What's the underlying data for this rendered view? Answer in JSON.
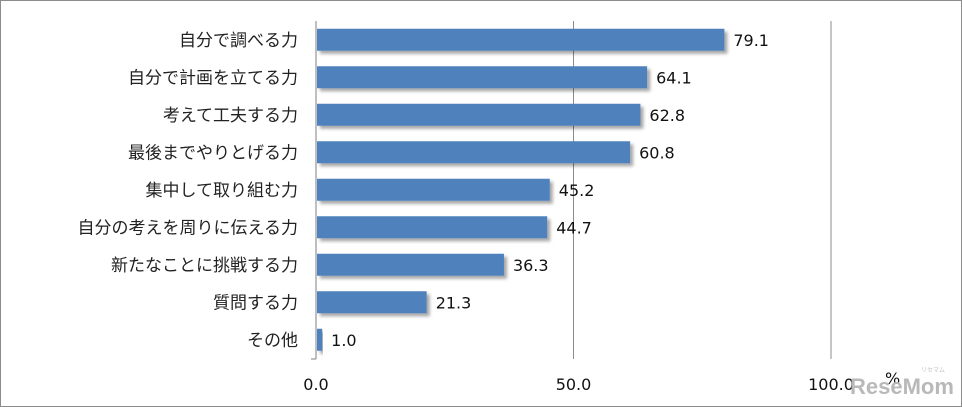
{
  "chart_data": {
    "type": "bar",
    "orientation": "horizontal",
    "categories": [
      "自分で調べる力",
      "自分で計画を立てる力",
      "考えて工夫する力",
      "最後までやりとげる力",
      "集中して取り組む力",
      "自分の考えを周りに伝える力",
      "新たなことに挑戦する力",
      "質問する力",
      "その他"
    ],
    "values": [
      79.1,
      64.1,
      62.8,
      60.8,
      45.2,
      44.7,
      36.3,
      21.3,
      1.0
    ],
    "value_labels": [
      "79.1",
      "64.1",
      "62.8",
      "60.8",
      "45.2",
      "44.7",
      "36.3",
      "21.3",
      "1.0"
    ],
    "xlim": [
      0,
      100
    ],
    "xticks": [
      0,
      50,
      100
    ],
    "xtick_labels": [
      "0.0",
      "50.0",
      "100.0"
    ],
    "xlabel": "%",
    "grid": "vertical",
    "legend": "none",
    "bar_color": "#4f81bd"
  },
  "watermark": {
    "text": "ReseMom",
    "subtext": "リセマム"
  }
}
